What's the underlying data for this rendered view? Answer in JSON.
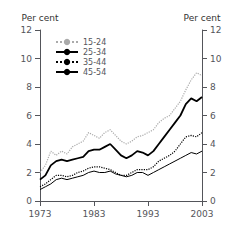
{
  "chart_data": {
    "type": "line",
    "ylabel": "Per cent",
    "y2label": "Per cent",
    "x": [
      1973,
      1974,
      1975,
      1976,
      1977,
      1978,
      1979,
      1980,
      1981,
      1982,
      1983,
      1984,
      1985,
      1986,
      1987,
      1988,
      1989,
      1990,
      1991,
      1992,
      1993,
      1994,
      1995,
      1996,
      1997,
      1998,
      1999,
      2000,
      2001,
      2002,
      2003
    ],
    "xlim": [
      1973,
      2003
    ],
    "xticks": [
      1973,
      1983,
      1993,
      2003
    ],
    "ylim": [
      0,
      12
    ],
    "yticks": [
      0,
      2,
      4,
      6,
      8,
      10,
      12
    ],
    "y2lim": [
      0,
      12
    ],
    "y2ticks": [
      0,
      2,
      4,
      6,
      8,
      10,
      12
    ],
    "grid": false,
    "legend": "upper left",
    "series": [
      {
        "name": "15-24",
        "color": "#aaaaaa",
        "line_style": "dotted",
        "values": [
          2.0,
          2.5,
          3.5,
          3.2,
          3.5,
          3.3,
          3.8,
          4.0,
          4.2,
          4.8,
          4.6,
          4.4,
          4.8,
          5.0,
          4.6,
          4.2,
          4.0,
          4.2,
          4.5,
          4.6,
          4.8,
          5.0,
          5.5,
          5.8,
          6.0,
          6.5,
          7.0,
          7.8,
          8.5,
          9.0,
          8.8
        ]
      },
      {
        "name": "25-34",
        "color": "#000000",
        "line_style": "solid",
        "values": [
          1.5,
          1.8,
          2.5,
          2.8,
          2.9,
          2.8,
          2.9,
          3.0,
          3.1,
          3.5,
          3.6,
          3.6,
          3.8,
          4.0,
          3.6,
          3.2,
          3.0,
          3.2,
          3.5,
          3.4,
          3.2,
          3.5,
          4.0,
          4.5,
          5.0,
          5.5,
          6.0,
          6.8,
          7.2,
          7.0,
          7.3
        ]
      },
      {
        "name": "35-44",
        "color": "#000000",
        "line_style": "dotted",
        "values": [
          1.0,
          1.2,
          1.5,
          1.8,
          1.8,
          1.7,
          1.8,
          2.0,
          2.1,
          2.3,
          2.4,
          2.4,
          2.3,
          2.2,
          2.0,
          1.8,
          1.8,
          2.0,
          2.2,
          2.2,
          2.2,
          2.4,
          2.8,
          3.0,
          3.2,
          3.5,
          4.0,
          4.5,
          4.6,
          4.5,
          4.8
        ]
      },
      {
        "name": "45-54",
        "color": "#000000",
        "line_style": "solid",
        "values": [
          0.8,
          1.0,
          1.2,
          1.5,
          1.6,
          1.5,
          1.6,
          1.7,
          1.8,
          2.0,
          2.1,
          2.0,
          2.0,
          2.1,
          1.9,
          1.8,
          1.7,
          1.8,
          2.0,
          2.0,
          1.8,
          2.0,
          2.2,
          2.4,
          2.6,
          2.8,
          3.0,
          3.2,
          3.4,
          3.3,
          3.5
        ]
      }
    ]
  }
}
